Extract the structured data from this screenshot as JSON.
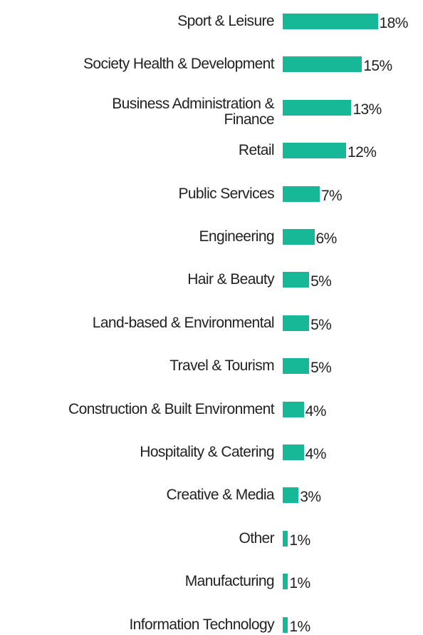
{
  "chart_data": {
    "type": "bar",
    "orientation": "horizontal",
    "color": "#17b897",
    "categories": [
      "Sport & Leisure",
      "Society Health & Development",
      "Business Administration & Finance",
      "Retail",
      "Public Services",
      "Engineering",
      "Hair & Beauty",
      "Land-based & Environmental",
      "Travel & Tourism",
      "Construction & Built Environment",
      "Hospitality & Catering",
      "Creative & Media",
      "Other",
      "Manufacturing",
      "Information Technology"
    ],
    "values": [
      18,
      15,
      13,
      12,
      7,
      6,
      5,
      5,
      5,
      4,
      4,
      3,
      1,
      1,
      1
    ],
    "value_labels": [
      "18%",
      "15%",
      "13%",
      "12%",
      "7%",
      "6%",
      "5%",
      "5%",
      "5%",
      "4%",
      "4%",
      "3%",
      "1%",
      "1%",
      "1%"
    ]
  }
}
